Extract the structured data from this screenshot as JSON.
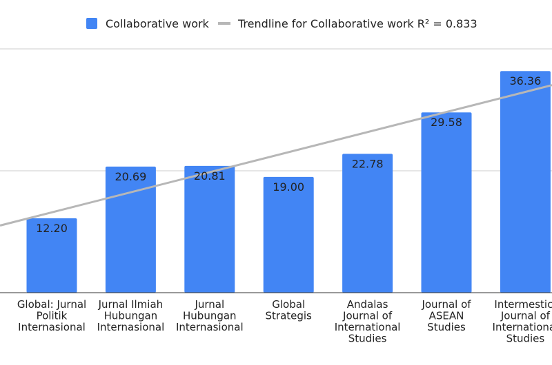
{
  "chart_data": {
    "type": "bar",
    "categories": [
      [
        "Global: Jurnal",
        "Politik",
        "Internasional"
      ],
      [
        "Jurnal Ilmiah",
        "Hubungan",
        "Internasional"
      ],
      [
        "Jurnal",
        "Hubungan",
        "Internasional"
      ],
      [
        "Global",
        "Strategis"
      ],
      [
        "Andalas",
        "Journal of",
        "International",
        "Studies"
      ],
      [
        "Journal of",
        "ASEAN",
        "Studies"
      ],
      [
        "Intermestic:",
        "Journal of",
        "International",
        "Studies"
      ]
    ],
    "series": [
      {
        "name": "Collaborative work",
        "values": [
          12.2,
          20.69,
          20.81,
          19.0,
          22.78,
          29.58,
          36.36
        ],
        "labels": [
          "12.20",
          "20.69",
          "20.81",
          "19.00",
          "22.78",
          "29.58",
          "36.36"
        ]
      }
    ],
    "trendline": {
      "name": "Trendline for Collaborative work R² = 0.833",
      "r_squared": 0.833
    },
    "ylim": [
      0,
      40
    ],
    "grid": true,
    "legend": "top-center",
    "colors": {
      "bar": "#4285f4",
      "trendline": "#b7b7b7",
      "grid": "#cccccc"
    }
  }
}
